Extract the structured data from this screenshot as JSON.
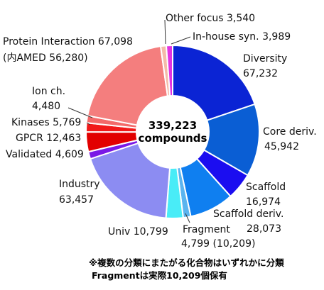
{
  "chart_data": {
    "type": "pie",
    "style": "donut",
    "center_label": [
      "339,223",
      "compounds"
    ],
    "slices": [
      {
        "label": "Diversity",
        "value_text": "67,232",
        "value": 67232,
        "color": "#0b24d4"
      },
      {
        "label": "Core deriv.",
        "value_text": "45,942",
        "value": 45942,
        "color": "#0a5ed4"
      },
      {
        "label": "Scaffold",
        "value_text": "16,974",
        "value": 16974,
        "color": "#1b0df0"
      },
      {
        "label": "Scaffold deriv.",
        "value_text": "28,073",
        "value": 28073,
        "color": "#0f7ff0"
      },
      {
        "label": "Fragment",
        "value_text": "4,799 (10,209)",
        "value": 4799,
        "color": "#5ab4ef"
      },
      {
        "label": "Univ",
        "value_text": "10,799",
        "value": 10799,
        "color": "#49ecf7"
      },
      {
        "label": "Industry",
        "value_text": "63,457",
        "value": 63457,
        "color": "#8c8cf2"
      },
      {
        "label": "Validated",
        "value_text": "4,609",
        "value": 4609,
        "color": "#7a19e6"
      },
      {
        "label": "GPCR",
        "value_text": "12,463",
        "value": 12463,
        "color": "#e20000"
      },
      {
        "label": "Kinases",
        "value_text": "5,769",
        "value": 5769,
        "color": "#f11a1a"
      },
      {
        "label": "Ion ch.",
        "value_text": "4,480",
        "value": 4480,
        "color": "#f36a6a"
      },
      {
        "label": "Protein Interaction",
        "value_text": "67,098",
        "value": 67098,
        "color": "#f47e7e"
      },
      {
        "label": "Other focus",
        "value_text": "3,540",
        "value": 3540,
        "color": "#f4baa8"
      },
      {
        "label": "In-house syn.",
        "value_text": "3,989",
        "value": 3989,
        "color": "#e232e2"
      }
    ],
    "labels": {
      "diversity": [
        "Diversity",
        "67,232"
      ],
      "core": [
        "Core deriv.",
        "45,942"
      ],
      "scaffold": [
        "Scaffold",
        "16,974"
      ],
      "scaffold_deriv": [
        "Scaffold deriv.",
        "28,073"
      ],
      "fragment": [
        "Fragment",
        "4,799 (10,209)"
      ],
      "univ": "Univ 10,799",
      "industry": [
        "Industry",
        "63,457"
      ],
      "validated": "Validated 4,609",
      "gpcr": "GPCR 12,463",
      "kinases": "Kinases 5,769",
      "ion": [
        "Ion ch.",
        "4,480"
      ],
      "protein": [
        "Protein Interaction 67,098",
        "(内AMED 56,280)"
      ],
      "other_focus": "Other focus 3,540",
      "inhouse": "In-house syn. 3,989"
    },
    "footnotes": [
      "※複数の分類にまたがる化合物はいずれかに分類",
      "Fragmentは実際10,209個保有"
    ]
  }
}
